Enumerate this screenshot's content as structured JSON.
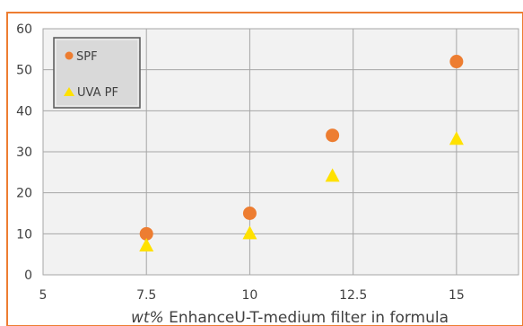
{
  "colors": {
    "frame": "#ED7D31",
    "plot_bg": "#F2F2F2",
    "grid": "#A6A6A6",
    "axis_text": "#404040",
    "legend_bg": "#D9D9D9",
    "legend_border": "#595959"
  },
  "chart_data": {
    "type": "scatter",
    "title": "",
    "xlabel_italic": "wt%",
    "xlabel_rest": " EnhanceU-T-medium filter in formula",
    "ylabel": "",
    "xlim": [
      5,
      16.5
    ],
    "ylim": [
      0,
      60
    ],
    "x_ticks": [
      "5",
      "7.5",
      "10",
      "12.5",
      "15"
    ],
    "x_tick_values": [
      5,
      7.5,
      10,
      12.5,
      15
    ],
    "y_ticks": [
      "0",
      "10",
      "20",
      "30",
      "40",
      "50",
      "60"
    ],
    "y_tick_values": [
      0,
      10,
      20,
      30,
      40,
      50,
      60
    ],
    "grid": true,
    "legend_position": "top-left",
    "series": [
      {
        "name": "SPF",
        "marker": "circle",
        "color": "#ED7D31",
        "points": [
          [
            7.5,
            10
          ],
          [
            10,
            15
          ],
          [
            12,
            34
          ],
          [
            15,
            52
          ]
        ]
      },
      {
        "name": "UVA PF",
        "marker": "triangle",
        "color": "#FFE100",
        "points": [
          [
            7.5,
            7
          ],
          [
            10,
            10
          ],
          [
            12,
            24
          ],
          [
            15,
            33
          ]
        ]
      }
    ]
  }
}
